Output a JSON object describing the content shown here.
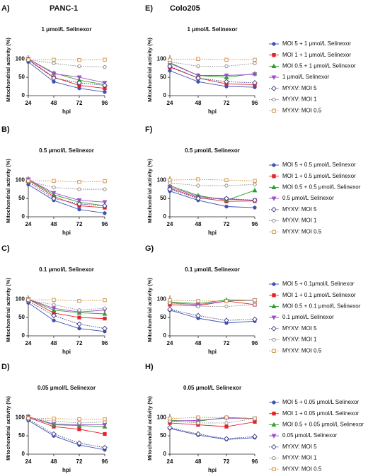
{
  "columns": [
    "PANC-1",
    "Colo205"
  ],
  "chart_data": [
    {
      "type": "line",
      "panel": "A)",
      "title": "1 μmol/L Selinexor",
      "xlabel": "hpi",
      "ylabel": "Mitochondrial activity (%)",
      "x": [
        24,
        48,
        72,
        96
      ],
      "xlim": [
        24,
        96
      ],
      "xticks": [
        24,
        48,
        72,
        96
      ],
      "ylim": [
        0,
        110
      ],
      "yticks": [
        0,
        50,
        100
      ],
      "series": [
        {
          "color": "#3f51b5",
          "marker": "circle",
          "open": false,
          "dash": false,
          "values": [
            92,
            38,
            20,
            10
          ]
        },
        {
          "color": "#e8202a",
          "marker": "square",
          "open": false,
          "dash": false,
          "values": [
            98,
            50,
            28,
            20
          ]
        },
        {
          "color": "#2ca02c",
          "marker": "triangle",
          "open": false,
          "dash": false,
          "values": [
            100,
            62,
            42,
            30
          ]
        },
        {
          "color": "#9b4fc8",
          "marker": "triangle-down",
          "open": false,
          "dash": false,
          "values": [
            100,
            60,
            50,
            35
          ]
        },
        {
          "color": "#3a3a80",
          "marker": "diamond",
          "open": true,
          "dash": true,
          "values": [
            97,
            48,
            35,
            28
          ]
        },
        {
          "color": "#888888",
          "marker": "circle",
          "open": true,
          "dash": true,
          "values": [
            98,
            88,
            80,
            78
          ]
        },
        {
          "color": "#d08a3a",
          "marker": "square",
          "open": true,
          "dash": true,
          "values": [
            98,
            98,
            97,
            98
          ]
        }
      ]
    },
    {
      "type": "line",
      "panel": "B)",
      "title": "0.5 μmol/L Selinexor",
      "xlabel": "hpi",
      "ylabel": "Mitochondrial activity (%)",
      "x": [
        24,
        48,
        72,
        96
      ],
      "xlim": [
        24,
        96
      ],
      "xticks": [
        24,
        48,
        72,
        96
      ],
      "ylim": [
        0,
        110
      ],
      "yticks": [
        0,
        50,
        100
      ],
      "series": [
        {
          "color": "#3f51b5",
          "marker": "circle",
          "open": false,
          "dash": false,
          "values": [
            88,
            45,
            20,
            10
          ]
        },
        {
          "color": "#e8202a",
          "marker": "square",
          "open": false,
          "dash": false,
          "values": [
            100,
            55,
            30,
            25
          ]
        },
        {
          "color": "#2ca02c",
          "marker": "triangle",
          "open": false,
          "dash": false,
          "values": [
            102,
            60,
            40,
            30
          ]
        },
        {
          "color": "#9b4fc8",
          "marker": "triangle-down",
          "open": false,
          "dash": false,
          "values": [
            102,
            65,
            45,
            40
          ]
        },
        {
          "color": "#3a3a80",
          "marker": "diamond",
          "open": true,
          "dash": true,
          "values": [
            95,
            50,
            35,
            30
          ]
        },
        {
          "color": "#888888",
          "marker": "circle",
          "open": true,
          "dash": true,
          "values": [
            97,
            80,
            75,
            75
          ]
        },
        {
          "color": "#d08a3a",
          "marker": "square",
          "open": true,
          "dash": true,
          "values": [
            98,
            98,
            95,
            97
          ]
        }
      ]
    },
    {
      "type": "line",
      "panel": "C)",
      "title": "0.1 μmol/L Selinexor",
      "xlabel": "hpi",
      "ylabel": "Mitochondrial activity (%)",
      "x": [
        24,
        48,
        72,
        96
      ],
      "xlim": [
        24,
        96
      ],
      "xticks": [
        24,
        48,
        72,
        96
      ],
      "ylim": [
        0,
        110
      ],
      "yticks": [
        0,
        50,
        100
      ],
      "series": [
        {
          "color": "#3f51b5",
          "marker": "circle",
          "open": false,
          "dash": false,
          "values": [
            90,
            42,
            20,
            12
          ]
        },
        {
          "color": "#e8202a",
          "marker": "square",
          "open": false,
          "dash": false,
          "values": [
            100,
            62,
            50,
            47
          ]
        },
        {
          "color": "#2ca02c",
          "marker": "triangle",
          "open": false,
          "dash": false,
          "values": [
            100,
            70,
            63,
            60
          ]
        },
        {
          "color": "#9b4fc8",
          "marker": "triangle-down",
          "open": false,
          "dash": false,
          "values": [
            100,
            75,
            65,
            70
          ]
        },
        {
          "color": "#3a3a80",
          "marker": "diamond",
          "open": true,
          "dash": true,
          "values": [
            95,
            55,
            32,
            20
          ]
        },
        {
          "color": "#888888",
          "marker": "circle",
          "open": true,
          "dash": true,
          "values": [
            97,
            85,
            70,
            75
          ]
        },
        {
          "color": "#d08a3a",
          "marker": "square",
          "open": true,
          "dash": true,
          "values": [
            98,
            98,
            95,
            97
          ]
        }
      ]
    },
    {
      "type": "line",
      "panel": "D)",
      "title": "0.05 μmol/L Selinexor",
      "xlabel": "hpi",
      "ylabel": "Mitochondrial activity (%)",
      "x": [
        24,
        48,
        72,
        96
      ],
      "xlim": [
        24,
        96
      ],
      "xticks": [
        24,
        48,
        72,
        96
      ],
      "ylim": [
        0,
        110
      ],
      "yticks": [
        0,
        50,
        100
      ],
      "series": [
        {
          "color": "#3f51b5",
          "marker": "circle",
          "open": false,
          "dash": false,
          "values": [
            92,
            50,
            25,
            12
          ]
        },
        {
          "color": "#e8202a",
          "marker": "square",
          "open": false,
          "dash": false,
          "values": [
            100,
            75,
            68,
            55
          ]
        },
        {
          "color": "#2ca02c",
          "marker": "triangle",
          "open": false,
          "dash": false,
          "values": [
            102,
            80,
            78,
            75
          ]
        },
        {
          "color": "#9b4fc8",
          "marker": "triangle-down",
          "open": false,
          "dash": false,
          "values": [
            102,
            82,
            80,
            80
          ]
        },
        {
          "color": "#3a3a80",
          "marker": "diamond",
          "open": true,
          "dash": true,
          "values": [
            95,
            55,
            30,
            18
          ]
        },
        {
          "color": "#888888",
          "marker": "circle",
          "open": true,
          "dash": true,
          "values": [
            97,
            90,
            85,
            88
          ]
        },
        {
          "color": "#d08a3a",
          "marker": "square",
          "open": true,
          "dash": true,
          "values": [
            98,
            97,
            95,
            95
          ]
        }
      ]
    },
    {
      "type": "line",
      "panel": "E)",
      "title": "1 μmol/L Selinexor",
      "xlabel": "hpi",
      "ylabel": "Mitochondrial activity (%)",
      "x": [
        24,
        48,
        72,
        96
      ],
      "xlim": [
        24,
        96
      ],
      "xticks": [
        24,
        48,
        72,
        96
      ],
      "ylim": [
        0,
        110
      ],
      "yticks": [
        0,
        50,
        100
      ],
      "series": [
        {
          "name": "MOI 5 + 1 μmol/L Selinexor",
          "color": "#3f51b5",
          "marker": "circle",
          "open": false,
          "dash": false,
          "values": [
            68,
            38,
            25,
            23
          ]
        },
        {
          "name": "MOI 1 + 1 μmol/L Selinexor",
          "color": "#e8202a",
          "marker": "square",
          "open": false,
          "dash": false,
          "values": [
            78,
            48,
            32,
            30
          ]
        },
        {
          "name": "MOI 0.5 + 1 μmol/L Selinexor",
          "color": "#2ca02c",
          "marker": "triangle",
          "open": false,
          "dash": false,
          "values": [
            90,
            55,
            50,
            60
          ]
        },
        {
          "name": "1 μmol/L Selinexor",
          "color": "#9b4fc8",
          "marker": "triangle-down",
          "open": false,
          "dash": false,
          "values": [
            88,
            55,
            55,
            58
          ]
        },
        {
          "name": "MYXV: MOI 5",
          "color": "#3a3a80",
          "marker": "diamond",
          "open": true,
          "dash": true,
          "values": [
            80,
            48,
            38,
            35
          ]
        },
        {
          "name": "MYXV: MOI 1",
          "color": "#888888",
          "marker": "circle",
          "open": true,
          "dash": true,
          "values": [
            92,
            80,
            80,
            88
          ]
        },
        {
          "name": "MYXV: MOI 0.5",
          "color": "#d08a3a",
          "marker": "square",
          "open": true,
          "dash": true,
          "values": [
            98,
            100,
            98,
            98
          ]
        }
      ]
    },
    {
      "type": "line",
      "panel": "F)",
      "title": "0.5 μmol/L Selinexor",
      "xlabel": "hpi",
      "ylabel": "Mitochondrial activity (%)",
      "x": [
        24,
        48,
        72,
        96
      ],
      "xlim": [
        24,
        96
      ],
      "xticks": [
        24,
        48,
        72,
        96
      ],
      "ylim": [
        0,
        110
      ],
      "yticks": [
        0,
        50,
        100
      ],
      "series": [
        {
          "name": "MOI 5 + 0.5 μmol/L Selinexor",
          "color": "#3f51b5",
          "marker": "circle",
          "open": false,
          "dash": false,
          "values": [
            70,
            45,
            28,
            25
          ]
        },
        {
          "name": "MOI 1 + 0.5 μmol/L Selinexor",
          "color": "#e8202a",
          "marker": "square",
          "open": false,
          "dash": false,
          "values": [
            78,
            52,
            42,
            43
          ]
        },
        {
          "name": "MOI 0.5 + 0.5 μmol/L Selinexor",
          "color": "#2ca02c",
          "marker": "triangle",
          "open": false,
          "dash": false,
          "values": [
            85,
            58,
            45,
            72
          ]
        },
        {
          "name": "0.5 μmol/L Selinexor",
          "color": "#9b4fc8",
          "marker": "triangle-down",
          "open": false,
          "dash": false,
          "values": [
            82,
            55,
            48,
            45
          ]
        },
        {
          "name": "MYXV: MOI 5",
          "color": "#3a3a80",
          "marker": "diamond",
          "open": true,
          "dash": true,
          "values": [
            75,
            50,
            50,
            45
          ]
        },
        {
          "name": "MYXV: MOI 1",
          "color": "#888888",
          "marker": "circle",
          "open": true,
          "dash": true,
          "values": [
            92,
            85,
            85,
            88
          ]
        },
        {
          "name": "MYXV: MOI 0.5",
          "color": "#d08a3a",
          "marker": "square",
          "open": true,
          "dash": true,
          "values": [
            100,
            102,
            100,
            98
          ]
        }
      ]
    },
    {
      "type": "line",
      "panel": "G)",
      "title": "0.1 μmol/L Selinexor",
      "xlabel": "hpi",
      "ylabel": "Mitochondrial activity (%)",
      "x": [
        24,
        48,
        72,
        96
      ],
      "xlim": [
        24,
        96
      ],
      "xticks": [
        24,
        48,
        72,
        96
      ],
      "ylim": [
        0,
        110
      ],
      "yticks": [
        0,
        50,
        100
      ],
      "series": [
        {
          "name": "MOI 5 + 0.1μmol/L Selinexor",
          "color": "#3f51b5",
          "marker": "circle",
          "open": false,
          "dash": false,
          "values": [
            70,
            48,
            35,
            40
          ]
        },
        {
          "name": "MOI 1 + 0.1 μmol/L Selinexor",
          "color": "#e8202a",
          "marker": "square",
          "open": false,
          "dash": false,
          "values": [
            85,
            82,
            95,
            85
          ]
        },
        {
          "name": "MOI 0.5 + 0.1 μmol/L Selinexor",
          "color": "#2ca02c",
          "marker": "triangle",
          "open": false,
          "dash": false,
          "values": [
            92,
            88,
            98,
            97
          ]
        },
        {
          "name": "0.1 μmol/L Selinexor",
          "color": "#9b4fc8",
          "marker": "triangle-down",
          "open": false,
          "dash": false,
          "values": [
            90,
            85,
            95,
            97
          ]
        },
        {
          "name": "MYXV: MOI 5",
          "color": "#3a3a80",
          "marker": "diamond",
          "open": true,
          "dash": true,
          "values": [
            72,
            55,
            42,
            45
          ]
        },
        {
          "name": "MYXV: MOI 1",
          "color": "#888888",
          "marker": "circle",
          "open": true,
          "dash": true,
          "values": [
            90,
            80,
            80,
            85
          ]
        },
        {
          "name": "MYXV: MOI 0.5",
          "color": "#d08a3a",
          "marker": "square",
          "open": true,
          "dash": true,
          "values": [
            97,
            95,
            95,
            97
          ]
        }
      ]
    },
    {
      "type": "line",
      "panel": "H)",
      "title": "0.05 μmol/L Selinexor",
      "xlabel": "hpi",
      "ylabel": "Mitochondrial activity (%)",
      "x": [
        24,
        48,
        72,
        96
      ],
      "xlim": [
        24,
        96
      ],
      "xticks": [
        24,
        48,
        72,
        96
      ],
      "ylim": [
        0,
        110
      ],
      "yticks": [
        0,
        50,
        100
      ],
      "series": [
        {
          "name": "MOI 5 + 0.05 μmol/L Selinexor",
          "color": "#3f51b5",
          "marker": "circle",
          "open": false,
          "dash": false,
          "values": [
            70,
            52,
            40,
            45
          ]
        },
        {
          "name": "MOI 1 + 0.05 μmol/L Selinexor",
          "color": "#e8202a",
          "marker": "square",
          "open": false,
          "dash": false,
          "values": [
            85,
            80,
            75,
            88
          ]
        },
        {
          "name": "MOI 0.5 + 0.05 μmol/L Selinexor",
          "color": "#2ca02c",
          "marker": "triangle",
          "open": false,
          "dash": false,
          "values": [
            92,
            90,
            100,
            97
          ]
        },
        {
          "name": "0.05 μmol/L Selinexor",
          "color": "#9b4fc8",
          "marker": "triangle-down",
          "open": false,
          "dash": false,
          "values": [
            90,
            92,
            98,
            97
          ]
        },
        {
          "name": "MYXV: MOI 5",
          "color": "#3a3a80",
          "marker": "diamond",
          "open": true,
          "dash": true,
          "values": [
            72,
            55,
            42,
            48
          ]
        },
        {
          "name": "MYXV: MOI 1",
          "color": "#888888",
          "marker": "circle",
          "open": true,
          "dash": true,
          "values": [
            90,
            85,
            85,
            97
          ]
        },
        {
          "name": "MYXV: MOI 0.5",
          "color": "#d08a3a",
          "marker": "square",
          "open": true,
          "dash": true,
          "values": [
            97,
            100,
            100,
            97
          ]
        }
      ]
    }
  ]
}
